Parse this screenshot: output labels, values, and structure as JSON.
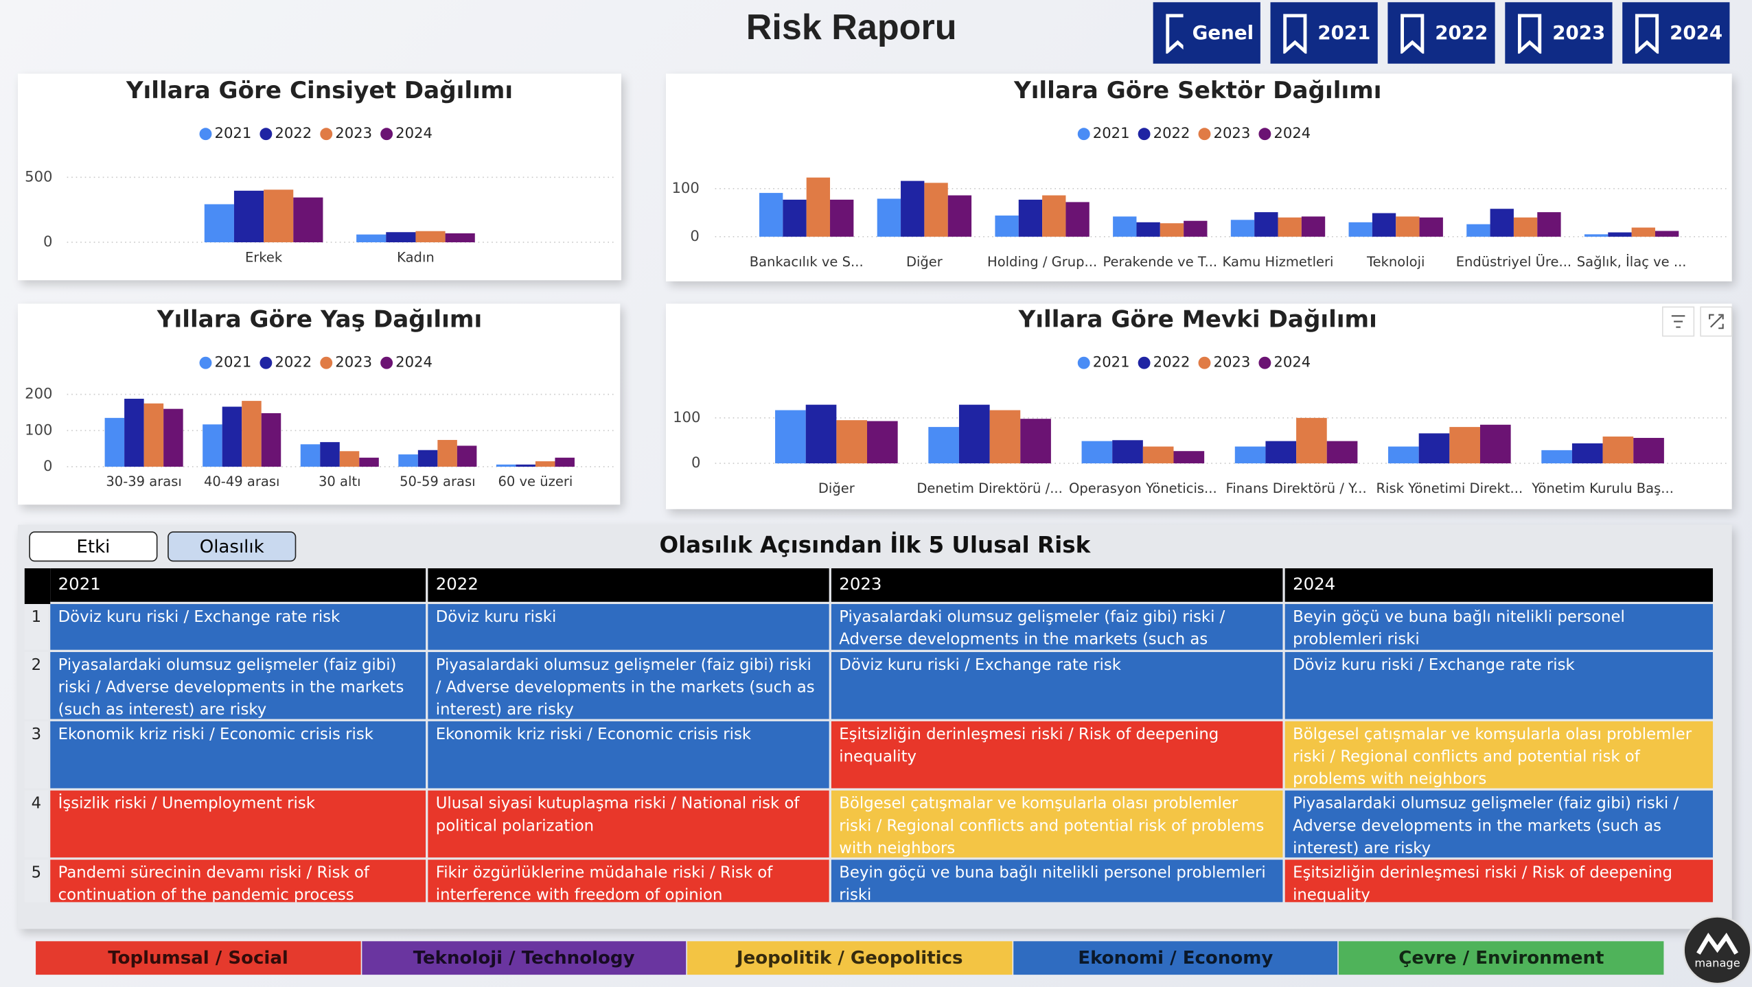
{
  "header": {
    "title": "Risk Raporu",
    "buttons": [
      "Genel",
      "2021",
      "2022",
      "2023",
      "2024"
    ]
  },
  "chart_data": [
    {
      "type": "bar",
      "title": "Yıllara Göre Cinsiyet Dağılımı",
      "categories": [
        "Erkek",
        "Kadın"
      ],
      "series": [
        {
          "name": "2021",
          "color": "#4a8cf5",
          "values": [
            293,
            60
          ]
        },
        {
          "name": "2022",
          "color": "#1f24a3",
          "values": [
            397,
            78
          ]
        },
        {
          "name": "2023",
          "color": "#e07b45",
          "values": [
            405,
            86
          ]
        },
        {
          "name": "2024",
          "color": "#6b1373",
          "values": [
            345,
            69
          ]
        }
      ],
      "ylim": [
        0,
        550
      ],
      "yticks": [
        0,
        500
      ],
      "grid": true,
      "legend": "top"
    },
    {
      "type": "bar",
      "title": "Yıllara Göre Sektör Dağılımı",
      "categories": [
        "Bankacılık ve S...",
        "Diğer",
        "Holding / Grup...",
        "Perakende ve T...",
        "Kamu Hizmetleri",
        "Teknoloji",
        "Endüstriyel Üre...",
        "Sağlık, İlaç ve ..."
      ],
      "series": [
        {
          "name": "2021",
          "color": "#4a8cf5",
          "values": [
            91,
            79,
            44,
            42,
            35,
            30,
            26,
            5
          ]
        },
        {
          "name": "2022",
          "color": "#1f24a3",
          "values": [
            77,
            116,
            77,
            30,
            51,
            49,
            58,
            9
          ]
        },
        {
          "name": "2023",
          "color": "#e07b45",
          "values": [
            123,
            112,
            86,
            28,
            40,
            42,
            40,
            19
          ]
        },
        {
          "name": "2024",
          "color": "#6b1373",
          "values": [
            77,
            86,
            72,
            33,
            42,
            40,
            51,
            12
          ]
        }
      ],
      "ylim": [
        0,
        130
      ],
      "yticks": [
        0,
        100
      ],
      "grid": true,
      "legend": "top"
    },
    {
      "type": "bar",
      "title": "Yıllara Göre Yaş Dağılımı",
      "categories": [
        "30-39 arası",
        "40-49 arası",
        "30 altı",
        "50-59 arası",
        "60 ve üzeri"
      ],
      "series": [
        {
          "name": "2021",
          "color": "#4a8cf5",
          "values": [
            135,
            117,
            62,
            34,
            6
          ]
        },
        {
          "name": "2022",
          "color": "#1f24a3",
          "values": [
            188,
            166,
            68,
            46,
            6
          ]
        },
        {
          "name": "2023",
          "color": "#e07b45",
          "values": [
            175,
            182,
            43,
            74,
            15
          ]
        },
        {
          "name": "2024",
          "color": "#6b1373",
          "values": [
            160,
            148,
            25,
            58,
            25
          ]
        }
      ],
      "ylim": [
        0,
        210
      ],
      "yticks": [
        0,
        100,
        200
      ],
      "grid": true,
      "legend": "top"
    },
    {
      "type": "bar",
      "title": "Yıllara Göre Mevki Dağılımı",
      "categories": [
        "Diğer",
        "Denetim Direktörü /...",
        "Operasyon Yöneticis...",
        "Finans Direktörü / Y...",
        "Risk Yönetimi Direkt...",
        "Yönetim Kurulu Baş..."
      ],
      "series": [
        {
          "name": "2021",
          "color": "#4a8cf5",
          "values": [
            117,
            80,
            49,
            37,
            37,
            29
          ]
        },
        {
          "name": "2022",
          "color": "#1f24a3",
          "values": [
            129,
            129,
            51,
            49,
            66,
            44
          ]
        },
        {
          "name": "2023",
          "color": "#e07b45",
          "values": [
            95,
            117,
            37,
            100,
            80,
            59
          ]
        },
        {
          "name": "2024",
          "color": "#6b1373",
          "values": [
            93,
            98,
            27,
            49,
            85,
            56
          ]
        }
      ],
      "ylim": [
        0,
        140
      ],
      "yticks": [
        0,
        100
      ],
      "grid": true,
      "legend": "top"
    }
  ],
  "toggle": [
    "Etki",
    "Olasılık"
  ],
  "table": {
    "title": "Olasılık Açısından İlk 5 Ulusal Risk",
    "columns": [
      "2021",
      "2022",
      "2023",
      "2024"
    ],
    "rows": [
      {
        "rank": 1,
        "cells": [
          {
            "text": "Döviz kuru riski / Exchange rate risk",
            "color": "#2f6cc1"
          },
          {
            "text": "Döviz kuru riski",
            "color": "#2f6cc1"
          },
          {
            "text": "Piyasalardaki olumsuz gelişmeler (faiz gibi) riski / Adverse developments in the markets (such as interest) are risky",
            "color": "#2f6cc1"
          },
          {
            "text": "Beyin göçü ve buna bağlı nitelikli personel problemleri riski",
            "color": "#2f6cc1"
          }
        ]
      },
      {
        "rank": 2,
        "cells": [
          {
            "text": "Piyasalardaki olumsuz gelişmeler (faiz gibi) riski / Adverse developments in the markets (such as interest) are risky",
            "color": "#2f6cc1"
          },
          {
            "text": "Piyasalardaki olumsuz gelişmeler (faiz gibi) riski / Adverse developments in the markets (such as interest) are risky",
            "color": "#2f6cc1"
          },
          {
            "text": "Döviz kuru riski / Exchange rate risk",
            "color": "#2f6cc1"
          },
          {
            "text": "Döviz kuru riski / Exchange rate risk",
            "color": "#2f6cc1"
          }
        ]
      },
      {
        "rank": 3,
        "cells": [
          {
            "text": "Ekonomik kriz riski / Economic crisis risk",
            "color": "#2f6cc1"
          },
          {
            "text": "Ekonomik kriz riski / Economic crisis risk",
            "color": "#2f6cc1"
          },
          {
            "text": "Eşitsizliğin derinleşmesi riski / Risk of deepening inequality",
            "color": "#e8372a"
          },
          {
            "text": "Bölgesel çatışmalar ve komşularla olası problemler riski / Regional conflicts and potential risk of problems with neighbors",
            "color": "#f4c545"
          }
        ]
      },
      {
        "rank": 4,
        "cells": [
          {
            "text": "İşsizlik riski / Unemployment risk",
            "color": "#e8372a"
          },
          {
            "text": "Ulusal siyasi kutuplaşma riski / National risk of political polarization",
            "color": "#e8372a"
          },
          {
            "text": "Bölgesel çatışmalar ve komşularla olası problemler riski / Regional conflicts and potential risk of problems with neighbors",
            "color": "#f4c545"
          },
          {
            "text": "Piyasalardaki olumsuz gelişmeler (faiz gibi) riski / Adverse developments in the markets (such as interest) are risky",
            "color": "#2f6cc1"
          }
        ]
      },
      {
        "rank": 5,
        "cells": [
          {
            "text": "Pandemi sürecinin devamı riski / Risk of continuation of the pandemic process",
            "color": "#e8372a"
          },
          {
            "text": "Fikir özgürlüklerine müdahale riski / Risk of interference with freedom of opinion",
            "color": "#e8372a"
          },
          {
            "text": "Beyin göçü ve buna bağlı nitelikli personel problemleri riski",
            "color": "#2f6cc1"
          },
          {
            "text": "Eşitsizliğin derinleşmesi riski / Risk of deepening inequality",
            "color": "#e8372a"
          }
        ]
      }
    ]
  },
  "category_legend": [
    {
      "label": "Toplumsal / Social",
      "color": "#e53a2d"
    },
    {
      "label": "Teknoloji / Technology",
      "color": "#6a35a0"
    },
    {
      "label": "Jeopolitik / Geopolitics",
      "color": "#f3c443"
    },
    {
      "label": "Ekonomi / Economy",
      "color": "#2f6cc1"
    },
    {
      "label": "Çevre / Environment",
      "color": "#4fb35a"
    }
  ],
  "logo": "manage"
}
